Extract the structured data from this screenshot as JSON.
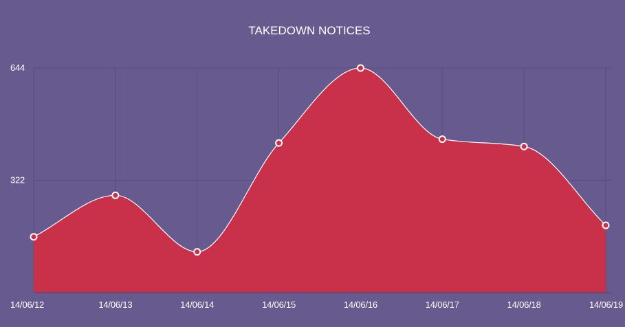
{
  "chart_data": {
    "type": "area",
    "title": "TAKEDOWN NOTICES",
    "categories": [
      "14/06/12",
      "14/06/13",
      "14/06/14",
      "14/06/15",
      "14/06/16",
      "14/06/17",
      "14/06/18",
      "14/06/19"
    ],
    "series": [
      {
        "name": "Takedown notices",
        "values": [
          160,
          279,
          117,
          429,
          644,
          440,
          419,
          193
        ]
      }
    ],
    "y_ticks": [
      "644",
      "322"
    ],
    "ylim": [
      0,
      644
    ],
    "xlabel": "",
    "ylabel": "",
    "grid": true
  },
  "colors": {
    "background": "#675a8e",
    "area_fill": "#c9314b",
    "line": "#ffffff",
    "marker_fill": "#c9314b",
    "marker_stroke": "#ffffff",
    "grid": "#5a4e80",
    "text": "#ffffff"
  }
}
